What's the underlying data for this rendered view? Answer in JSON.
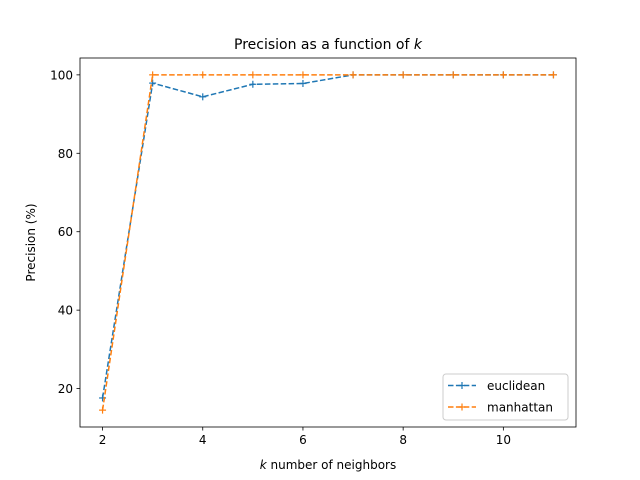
{
  "chart_data": {
    "type": "line",
    "title_prefix": "Precision as a function of ",
    "title_var": "k",
    "xlabel_var": "k",
    "xlabel_suffix": " number of neighbors",
    "ylabel": "Precision (%)",
    "x": [
      2,
      3,
      4,
      5,
      6,
      7,
      8,
      9,
      10,
      11
    ],
    "xlim": [
      1.55,
      11.45
    ],
    "ylim": [
      10.2,
      104.3
    ],
    "xticks": [
      2,
      4,
      6,
      8,
      10
    ],
    "yticks": [
      20,
      40,
      60,
      80,
      100
    ],
    "grid": false,
    "legend_position": "lower-right",
    "series": [
      {
        "name": "euclidean",
        "color": "#1f77b4",
        "values": [
          17.6,
          97.9,
          94.4,
          97.6,
          97.8,
          100,
          100,
          100,
          100,
          100
        ]
      },
      {
        "name": "manhattan",
        "color": "#ff7f0e",
        "values": [
          14.5,
          100,
          100,
          100,
          100,
          100,
          100,
          100,
          100,
          100
        ]
      }
    ]
  }
}
